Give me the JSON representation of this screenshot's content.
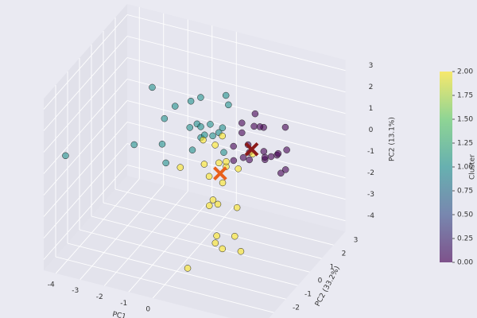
{
  "chart_data": {
    "type": "scatter3d",
    "xlabel": "PC1",
    "ylabel": "PC2 (33.2%)",
    "zlabel": "PC2 (13.1%)",
    "colorbar_label": "Cluster",
    "xlim": [
      -4.5,
      4.5
    ],
    "ylim": [
      -3,
      4
    ],
    "zlim": [
      -4.5,
      3.5
    ],
    "xticks": [
      -4,
      -3,
      -2,
      -1,
      0
    ],
    "yticks": [
      -2,
      -1,
      0,
      1,
      2,
      3
    ],
    "zticks": [
      -4,
      -3,
      -2,
      -1,
      0,
      1,
      2,
      3
    ],
    "clim": [
      0,
      2
    ],
    "cticks": [
      {
        "value": 0,
        "label": "0.00"
      },
      {
        "value": 0.25,
        "label": "0.25"
      },
      {
        "value": 0.5,
        "label": "0.50"
      },
      {
        "value": 0.75,
        "label": "0.75"
      },
      {
        "value": 1,
        "label": "1.00"
      },
      {
        "value": 1.25,
        "label": "1.25"
      },
      {
        "value": 1.5,
        "label": "1.50"
      },
      {
        "value": 1.75,
        "label": "1.75"
      },
      {
        "value": 2,
        "label": "2.00"
      }
    ],
    "colormap": [
      "#440154",
      "#3b528b",
      "#21918c",
      "#5ec962",
      "#fde725"
    ],
    "grid": true,
    "points": {
      "x": [
        2.1,
        2.5,
        2.8,
        3.2,
        3.5,
        2.3,
        2.9,
        3.1,
        2.6,
        3.8,
        4.1,
        2.0,
        2.4,
        3.0,
        3.3,
        2.7,
        3.6,
        2.2,
        2.9,
        3.4,
        1.9,
        3.9,
        0.2,
        0.6,
        1.0,
        -0.3,
        0.8,
        1.3,
        0.4,
        -0.8,
        0.0,
        1.1,
        0.7,
        -1.5,
        -3.6,
        -0.5,
        0.9,
        1.5,
        -2.0,
        0.3,
        -1.0,
        0.5,
        1.2,
        -0.2,
        1.2,
        1.6,
        0.8,
        1.9,
        1.4,
        0.5,
        1.0,
        2.2,
        1.7,
        0.3,
        1.1,
        1.5,
        0.9,
        2.0,
        0.6,
        1.3,
        1.8,
        0.1,
        2.4,
        1.0,
        1.6,
        0.7
      ],
      "y": [
        0.2,
        -0.5,
        0.6,
        -0.2,
        0.3,
        0.9,
        -0.8,
        0.1,
        -0.3,
        0.5,
        -0.6,
        0.4,
        1.1,
        -1.0,
        0.8,
        0.0,
        -0.4,
        -0.7,
        0.5,
        1.2,
        -0.1,
        0.2,
        0.3,
        -0.2,
        0.5,
        0.8,
        -0.6,
        0.2,
        1.0,
        -0.4,
        0.1,
        -0.9,
        0.6,
        0.0,
        -3.0,
        -1.2,
        1.3,
        -0.1,
        -0.5,
        0.4,
        0.9,
        -0.7,
        0.9,
        -1.5,
        0.1,
        -0.4,
        0.6,
        0.3,
        -0.8,
        0.2,
        -0.3,
        0.9,
        -1.1,
        0.7,
        0.0,
        -0.6,
        1.0,
        -0.2,
        -1.3,
        0.5,
        0.4,
        -0.9,
        -0.5,
        0.8,
        -0.1,
        0.3
      ],
      "z": [
        1.8,
        1.2,
        2.0,
        1.5,
        1.1,
        2.3,
        1.4,
        0.9,
        1.7,
        1.3,
        1.0,
        2.1,
        1.6,
        1.9,
        0.8,
        2.4,
        1.5,
        1.1,
        0.7,
        1.8,
        1.3,
        0.6,
        1.6,
        1.9,
        1.3,
        2.2,
        1.7,
        1.8,
        1.2,
        2.0,
        1.5,
        2.1,
        1.0,
        3.0,
        1.1,
        1.4,
        2.5,
        0.9,
        0.5,
        2.8,
        1.7,
        1.1,
        2.4,
        0.8,
        0.2,
        -0.3,
        0.6,
        0.0,
        -0.9,
        1.0,
        -1.6,
        0.4,
        -2.3,
        -0.5,
        -3.5,
        -1.2,
        0.8,
        -2.8,
        -4.0,
        -0.2,
        -1.9,
        0.3,
        -3.2,
        -4.3,
        0.5,
        -0.7
      ],
      "cluster": [
        0,
        0,
        0,
        0,
        0,
        0,
        0,
        0,
        0,
        0,
        0,
        0,
        0,
        0,
        0,
        0,
        0,
        0,
        0,
        0,
        0,
        0,
        1,
        1,
        1,
        1,
        1,
        1,
        1,
        1,
        1,
        1,
        1,
        1,
        1,
        1,
        1,
        1,
        1,
        1,
        1,
        1,
        1,
        1,
        2,
        2,
        2,
        2,
        2,
        2,
        2,
        2,
        2,
        2,
        2,
        2,
        2,
        2,
        2,
        2,
        2,
        2,
        2,
        2,
        2,
        2
      ]
    },
    "centroids": {
      "x": [
        2.6,
        1.3
      ],
      "y": [
        0,
        0
      ],
      "z": [
        1.3,
        -0.2
      ],
      "colors": [
        "#8b1a1a",
        "#e8601c"
      ]
    }
  }
}
